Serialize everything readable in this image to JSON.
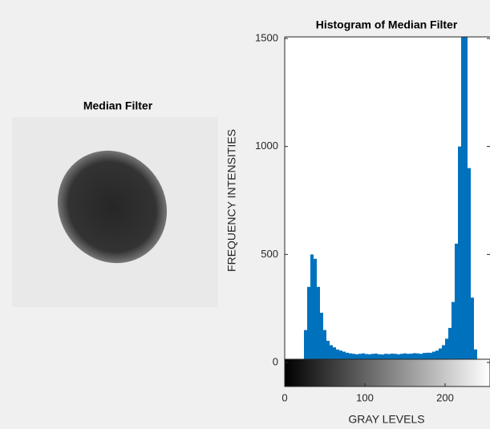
{
  "chart_data": [
    {
      "type": "image",
      "title": "Median Filter"
    },
    {
      "type": "histogram",
      "title": "Histogram of Median Filter",
      "xlabel": "GRAY LEVELS",
      "ylabel": "FREQUENCY INTENSITIES",
      "bins": [
        0,
        4,
        8,
        12,
        16,
        20,
        24,
        28,
        32,
        36,
        40,
        44,
        48,
        52,
        56,
        60,
        64,
        68,
        72,
        76,
        80,
        84,
        88,
        92,
        96,
        100,
        104,
        108,
        112,
        116,
        120,
        124,
        128,
        132,
        136,
        140,
        144,
        148,
        152,
        156,
        160,
        164,
        168,
        172,
        176,
        180,
        184,
        188,
        192,
        196,
        200,
        204,
        208,
        212,
        216,
        220,
        224,
        228,
        232,
        236,
        240,
        244,
        248,
        252,
        256
      ],
      "values": [
        0,
        0,
        0,
        0,
        0,
        10,
        150,
        350,
        500,
        480,
        350,
        230,
        150,
        100,
        80,
        70,
        60,
        55,
        50,
        45,
        42,
        40,
        38,
        40,
        42,
        39,
        38,
        40,
        41,
        38,
        37,
        40,
        39,
        41,
        40,
        38,
        40,
        42,
        40,
        41,
        43,
        42,
        40,
        44,
        45,
        45,
        50,
        55,
        65,
        80,
        110,
        160,
        280,
        550,
        1000,
        1600,
        1600,
        900,
        300,
        60,
        0,
        0,
        0,
        0
      ],
      "color": "#0072bd",
      "xlim": [
        0,
        256
      ],
      "ylim": [
        0,
        1500
      ],
      "xticks": [
        0,
        100,
        200
      ],
      "yticks": [
        0,
        500,
        1000,
        1500
      ]
    }
  ]
}
